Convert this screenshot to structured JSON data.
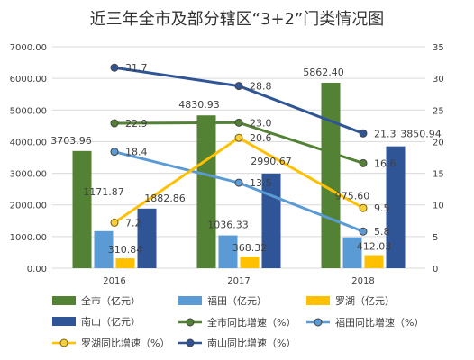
{
  "chart_data": {
    "type": "bar",
    "title": "近三年全市及部分辖区“3+2”门类情况图",
    "categories": [
      "2016",
      "2017",
      "2018"
    ],
    "y_left": {
      "min": 0,
      "max": 7000,
      "step": 1000,
      "ticks": [
        "0.00",
        "1000.00",
        "2000.00",
        "3000.00",
        "4000.00",
        "5000.00",
        "6000.00",
        "7000.00"
      ]
    },
    "y_right": {
      "min": 0,
      "max": 35,
      "step": 5,
      "ticks": [
        "0",
        "5",
        "10",
        "15",
        "20",
        "25",
        "30",
        "35"
      ]
    },
    "bar_series": [
      {
        "name": "全市（亿元）",
        "color": "#548235",
        "values": [
          3703.96,
          4830.93,
          5862.4
        ],
        "labels": [
          "3703.96",
          "4830.93",
          "5862.40"
        ]
      },
      {
        "name": "福田（亿元）",
        "color": "#5b9bd5",
        "values": [
          1171.87,
          1036.33,
          975.6
        ],
        "labels": [
          "1171.87",
          "1036.33",
          "975.60"
        ]
      },
      {
        "name": "罗湖（亿元）",
        "color": "#ffc000",
        "values": [
          310.84,
          368.32,
          412.03
        ],
        "labels": [
          "310.84",
          "368.32",
          "412.03"
        ]
      },
      {
        "name": "南山（亿元）",
        "color": "#2f5597",
        "values": [
          1882.86,
          2990.67,
          3850.94
        ],
        "labels": [
          "1882.86",
          "2990.67",
          "3850.94"
        ]
      }
    ],
    "line_series": [
      {
        "name": "全市同比增速（%）",
        "color": "#548235",
        "values": [
          22.9,
          23.0,
          16.6
        ],
        "labels": [
          "22.9",
          "23.0",
          "16.6"
        ]
      },
      {
        "name": "福田同比增速（%）",
        "color": "#5b9bd5",
        "values": [
          18.4,
          13.5,
          5.8
        ],
        "labels": [
          "18.4",
          "13.5",
          "5.8"
        ]
      },
      {
        "name": "罗湖同比增速（%）",
        "color": "#ffc000",
        "values": [
          7.2,
          20.6,
          9.5
        ],
        "labels": [
          "7.2",
          "20.6",
          "9.5"
        ]
      },
      {
        "name": "南山同比增速（%）",
        "color": "#2f5597",
        "values": [
          31.7,
          28.8,
          21.3
        ],
        "labels": [
          "31.7",
          "28.8",
          "21.3"
        ]
      }
    ],
    "legend_position": "bottom",
    "grid": true
  }
}
